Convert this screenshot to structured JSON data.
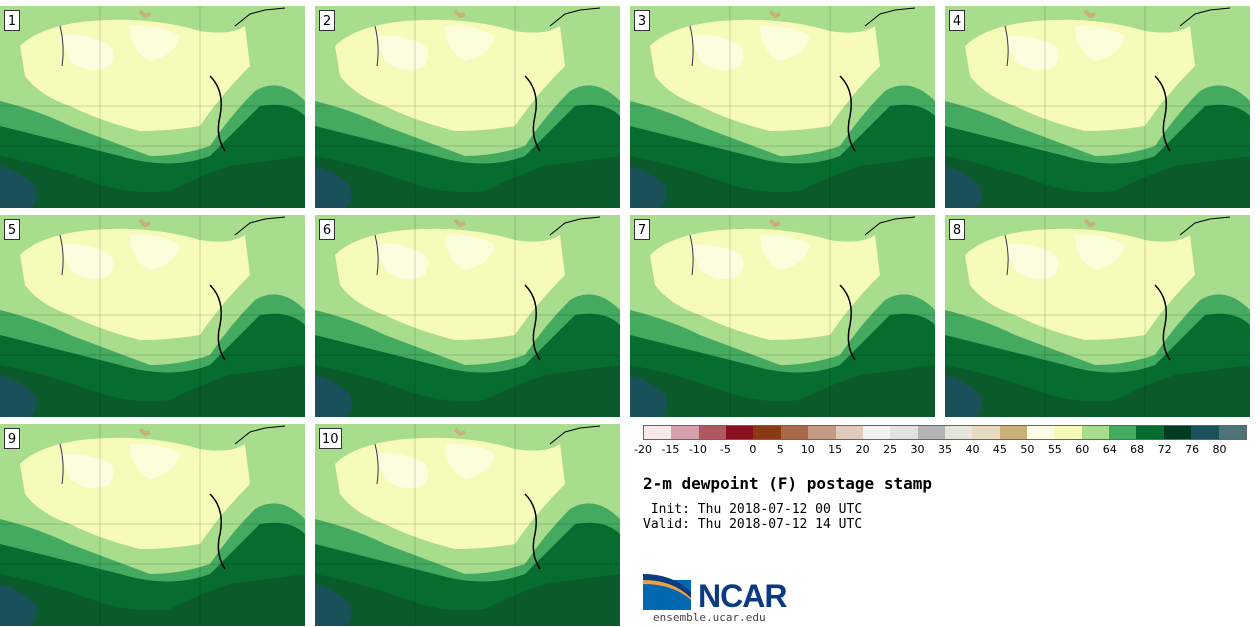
{
  "panels": [
    "1",
    "2",
    "3",
    "4",
    "5",
    "6",
    "7",
    "8",
    "9",
    "10"
  ],
  "legend": {
    "colors": [
      "#f7e8ea",
      "#d6a0ab",
      "#b05862",
      "#8a1020",
      "#8a3a10",
      "#a86a48",
      "#c49a85",
      "#e0cabb",
      "#f4f2f0",
      "#e2e2e2",
      "#b5b5b5",
      "#e4e6dc",
      "#e8dcc0",
      "#c9b078",
      "#fefde8",
      "#f7fbba",
      "#a8dd8e",
      "#44aa60",
      "#066c30",
      "#003a20",
      "#1a505a",
      "#4d7478"
    ],
    "ticks": [
      "-20",
      "-15",
      "-10",
      "-5",
      "0",
      "5",
      "10",
      "15",
      "20",
      "25",
      "30",
      "35",
      "40",
      "45",
      "50",
      "55",
      "60",
      "64",
      "68",
      "72",
      "76",
      "80"
    ]
  },
  "title": "2-m dewpoint (F) postage stamp",
  "init_line": " Init: Thu 2018-07-12 00 UTC",
  "valid_line": "Valid: Thu 2018-07-12 14 UTC",
  "logo": {
    "text": "NCAR",
    "url": "ensemble.ucar.edu"
  }
}
